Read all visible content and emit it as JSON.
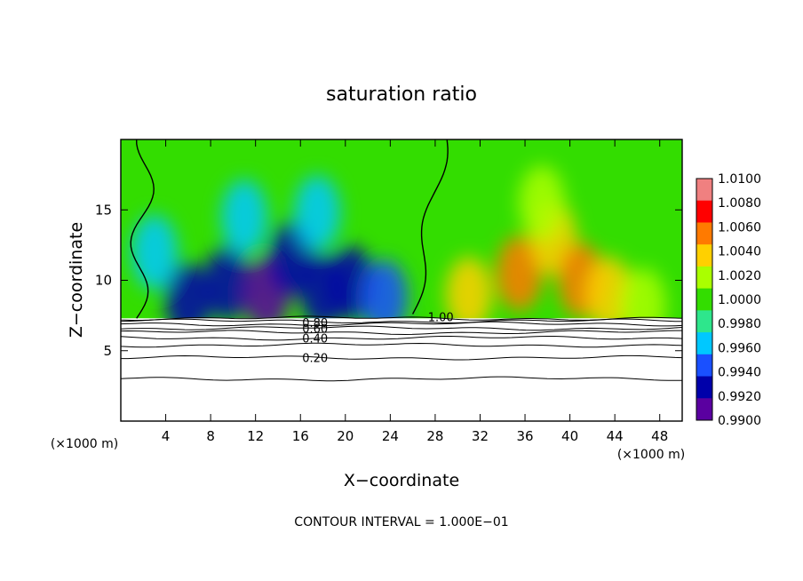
{
  "chart_data": {
    "type": "heatmap",
    "title": "saturation ratio",
    "xlabel": "X−coordinate",
    "ylabel": "Z−coordinate",
    "x_unit_left": "(×1000 m)",
    "x_unit_right": "(×1000 m)",
    "footer": "CONTOUR INTERVAL = 1.000E−01",
    "xlim": [
      0,
      50
    ],
    "ylim": [
      0,
      20
    ],
    "x_ticks": [
      "4",
      "8",
      "12",
      "16",
      "20",
      "24",
      "28",
      "32",
      "36",
      "40",
      "44",
      "48"
    ],
    "x_tick_values": [
      4,
      8,
      12,
      16,
      20,
      24,
      28,
      32,
      36,
      40,
      44,
      48
    ],
    "y_ticks": [
      "5",
      "10",
      "15"
    ],
    "y_tick_values": [
      5,
      10,
      15
    ],
    "colorbar": {
      "labels": [
        "1.0100",
        "1.0080",
        "1.0060",
        "1.0040",
        "1.0020",
        "1.0000",
        "0.9980",
        "0.9960",
        "0.9940",
        "0.9920",
        "0.9900"
      ],
      "values": [
        1.01,
        1.008,
        1.006,
        1.004,
        1.002,
        1.0,
        0.998,
        0.996,
        0.994,
        0.992,
        0.99
      ],
      "colors": [
        "#f08080",
        "#ff0000",
        "#ff7a00",
        "#ffd000",
        "#aaff00",
        "#33dd00",
        "#2ee68c",
        "#00c8ff",
        "#1a50ff",
        "#0000aa",
        "#5a00a0"
      ]
    },
    "contour_labels": [
      {
        "text": "1.00",
        "x": 28.5,
        "z": 7.4
      },
      {
        "text": "0.80",
        "x": 17.3,
        "z": 7.0
      },
      {
        "text": "0.60",
        "x": 17.3,
        "z": 6.6
      },
      {
        "text": "0.40",
        "x": 17.3,
        "z": 5.9
      },
      {
        "text": "0.20",
        "x": 17.3,
        "z": 4.5
      }
    ],
    "surface_z": 7.3,
    "field_blobs": [
      {
        "x": 3.0,
        "z": 12.0,
        "value": 0.9978
      },
      {
        "x": 6.0,
        "z": 8.6,
        "value": 0.993
      },
      {
        "x": 9.5,
        "z": 9.8,
        "value": 0.9925
      },
      {
        "x": 13.0,
        "z": 9.0,
        "value": 0.991
      },
      {
        "x": 15.2,
        "z": 11.5,
        "value": 0.993
      },
      {
        "x": 18.0,
        "z": 9.2,
        "value": 0.9925
      },
      {
        "x": 20.5,
        "z": 9.8,
        "value": 0.9935
      },
      {
        "x": 23.5,
        "z": 8.8,
        "value": 0.9945
      },
      {
        "x": 11.0,
        "z": 14.5,
        "value": 0.997
      },
      {
        "x": 17.5,
        "z": 14.8,
        "value": 0.9968
      },
      {
        "x": 31.0,
        "z": 9.0,
        "value": 1.004
      },
      {
        "x": 35.5,
        "z": 10.5,
        "value": 1.0065
      },
      {
        "x": 38.5,
        "z": 13.0,
        "value": 1.005
      },
      {
        "x": 41.0,
        "z": 10.0,
        "value": 1.007
      },
      {
        "x": 43.5,
        "z": 9.0,
        "value": 1.0045
      },
      {
        "x": 46.5,
        "z": 8.2,
        "value": 1.0025
      },
      {
        "x": 37.5,
        "z": 15.5,
        "value": 1.002
      }
    ]
  }
}
